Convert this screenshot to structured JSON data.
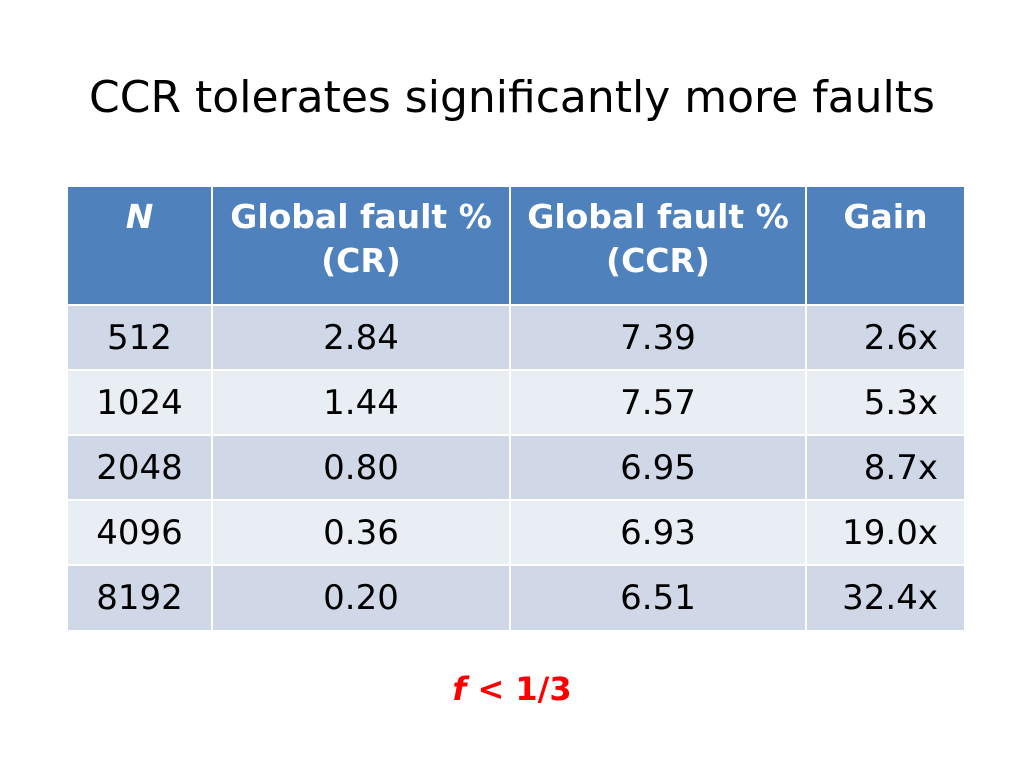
{
  "title": "CCR tolerates significantly more faults",
  "table": {
    "headers": [
      {
        "line1": "N",
        "line2": ""
      },
      {
        "line1": "Global fault %",
        "line2": "(CR)"
      },
      {
        "line1": "Global fault %",
        "line2": "(CCR)"
      },
      {
        "line1": "Gain",
        "line2": ""
      }
    ],
    "rows": [
      [
        "512",
        "2.84",
        "7.39",
        "2.6x"
      ],
      [
        "1024",
        "1.44",
        "7.57",
        "5.3x"
      ],
      [
        "2048",
        "0.80",
        "6.95",
        "8.7x"
      ],
      [
        "4096",
        "0.36",
        "6.93",
        "19.0x"
      ],
      [
        "8192",
        "0.20",
        "6.51",
        "32.4x"
      ]
    ]
  },
  "footnote": {
    "variable": "f",
    "rest": " < 1/3"
  },
  "colors": {
    "header_bg": "#4f81bd",
    "row_odd_bg": "#d0d8e8",
    "row_even_bg": "#e9edf4",
    "footnote": "#ff0000"
  }
}
